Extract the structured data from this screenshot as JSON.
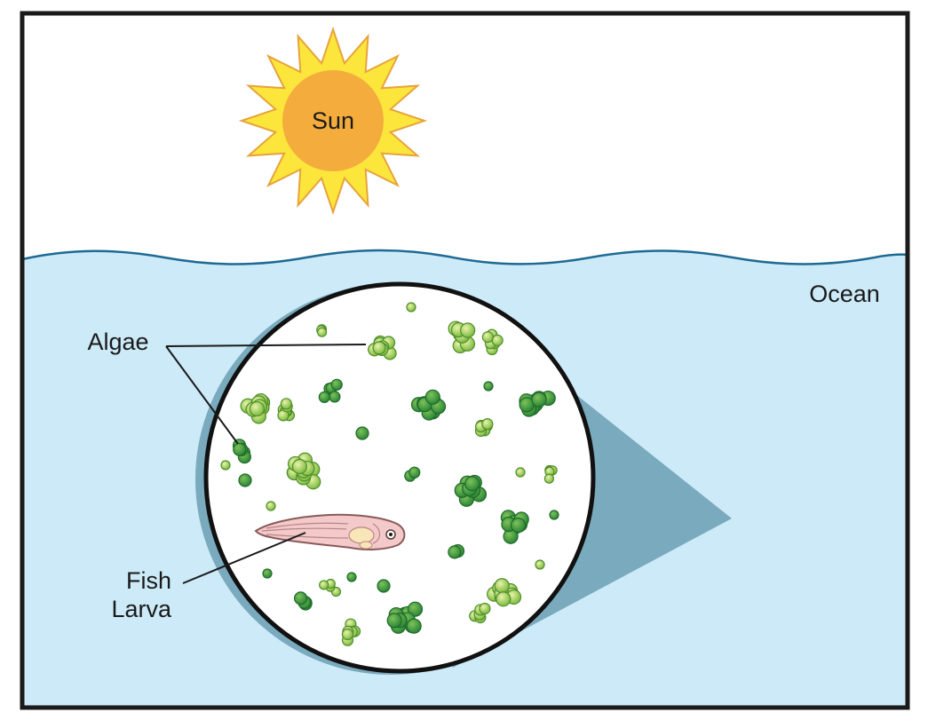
{
  "labels": {
    "sun": "Sun",
    "ocean": "Ocean",
    "algae": "Algae",
    "fish_line1": "Fish",
    "fish_line2": "Larva"
  },
  "colors": {
    "sun_core": "#f4ad3d",
    "sun_rays": "#fce63c",
    "sun_outline": "#e7a33c",
    "ocean": "#cdeaf8",
    "wave": "#1e6a93",
    "magnifier_shadow": "#7aaabd",
    "algae_dark": "#2e8a3a",
    "algae_light": "#b8d96a",
    "larva": "#f3c9c9",
    "frame": "#1a1a1a"
  },
  "icons": {
    "sun": "sun-icon",
    "magnifier": "magnifier-circle",
    "larva": "fish-larva-icon",
    "algae": "algae-cluster-icon"
  }
}
